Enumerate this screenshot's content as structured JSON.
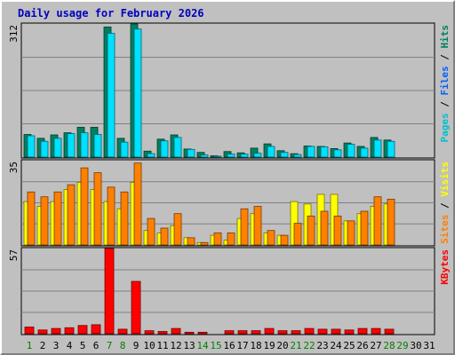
{
  "chart_data": {
    "type": "bar",
    "title": "Daily usage for February 2026",
    "days": [
      "1",
      "2",
      "3",
      "4",
      "5",
      "6",
      "7",
      "8",
      "9",
      "10",
      "11",
      "12",
      "13",
      "14",
      "15",
      "16",
      "17",
      "18",
      "19",
      "20",
      "21",
      "22",
      "23",
      "24",
      "25",
      "26",
      "27",
      "28",
      "29",
      "30",
      "31"
    ],
    "weekend_days": [
      "1",
      "7",
      "8",
      "14",
      "15",
      "21",
      "22",
      "28",
      "29"
    ],
    "panels": [
      {
        "id": "hits_files_pages",
        "ymax": 312,
        "ymax_label": "312",
        "axis_label_parts": [
          {
            "text": "Pages",
            "color": "#00c0d0"
          },
          {
            "text": " / ",
            "color": "#000000"
          },
          {
            "text": "Files",
            "color": "#0060ff"
          },
          {
            "text": " / ",
            "color": "#000000"
          },
          {
            "text": "Hits",
            "color": "#008060"
          }
        ],
        "series": [
          {
            "name": "Hits",
            "color": "#008060",
            "values": [
              53,
              44,
              52,
              57,
              70,
              70,
              305,
              44,
              312,
              14,
              42,
              52,
              19,
              11,
              3,
              13,
              10,
              21,
              31,
              15,
              8,
              26,
              25,
              20,
              33,
              25,
              46,
              40,
              0,
              0,
              0
            ]
          },
          {
            "name": "Files",
            "color": "#00e0ff",
            "values": [
              50,
              37,
              44,
              55,
              57,
              53,
              290,
              35,
              300,
              8,
              38,
              46,
              18,
              5,
              2,
              7,
              7,
              9,
              25,
              11,
              6,
              25,
              24,
              17,
              30,
              21,
              40,
              37,
              0,
              0,
              0
            ]
          }
        ]
      },
      {
        "id": "visits_sites",
        "ymax": 35,
        "ymax_label": "35",
        "axis_label_parts": [
          {
            "text": "Sites",
            "color": "#ff8000"
          },
          {
            "text": " / ",
            "color": "#000000"
          },
          {
            "text": "Visits",
            "color": "#ffff00"
          }
        ],
        "series": [
          {
            "name": "Visits",
            "color": "#ffff00",
            "values": [
              18,
              16,
              18,
              23,
              26,
              23,
              18,
              15,
              26,
              6,
              5,
              8,
              3,
              1,
              4,
              2,
              11,
              13,
              5,
              4,
              18,
              17,
              21,
              21,
              10,
              13,
              16,
              17,
              0,
              0,
              0
            ]
          },
          {
            "name": "Sites",
            "color": "#ff8000",
            "values": [
              22,
              20,
              22,
              25,
              32,
              30,
              24,
              22,
              34,
              11,
              7,
              13,
              3,
              1,
              5,
              5,
              15,
              16,
              6,
              4,
              9,
              12,
              14,
              12,
              10,
              14,
              20,
              19,
              0,
              0,
              0
            ]
          }
        ]
      },
      {
        "id": "kbytes",
        "ymax": 57,
        "ymax_label": "57",
        "axis_label_parts": [
          {
            "text": "KBytes",
            "color": "#ff0000"
          }
        ],
        "series": [
          {
            "name": "KBytes",
            "color": "#ff0000",
            "values": [
              4.5,
              2.5,
              3.5,
              4,
              5.5,
              6,
              57,
              3,
              35,
              2,
              1.5,
              3.5,
              1,
              1,
              0,
              2,
              2,
              2,
              3.5,
              2,
              2,
              3.5,
              3,
              3,
              2.5,
              3.5,
              3.5,
              3,
              0,
              0,
              0
            ]
          }
        ]
      }
    ]
  }
}
